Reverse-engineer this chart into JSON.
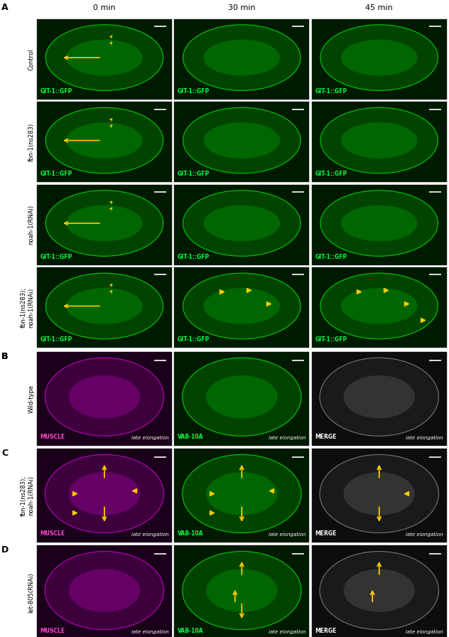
{
  "fig_width": 6.32,
  "fig_height": 8.96,
  "bg_color": "#ffffff",
  "green_bg": "#001a00",
  "magenta_bg": "#1a001a",
  "merge_bg": "#0d0d0d",
  "green_cell": "#003300",
  "magenta_cell": "#2d002d",
  "merge_cell": "#111111",
  "text_white": "#ffffff",
  "text_green": "#00ff44",
  "text_magenta": "#ff44cc",
  "arrow_color": "#ffcc00",
  "panel_label_fs": 9,
  "col_label_fs": 8,
  "row_label_fs": 6,
  "channel_fs": 5.5,
  "sublabel_fs": 5,
  "panel_A": {
    "col_labels": [
      "0 min",
      "30 min",
      "45 min"
    ],
    "row_labels": [
      "Control",
      "fbn-1(ns283)",
      "noah-1(RNAi)",
      "fbn-1(ns283);\nnoah-1(RNAi)"
    ]
  },
  "panel_B": {
    "row_label": "Wild-type"
  },
  "panel_C": {
    "row_label": "fbn-1(ns283);\nnoah-1(RNAi)"
  },
  "panel_D": {
    "row_label": "let-805(RNAi)"
  }
}
